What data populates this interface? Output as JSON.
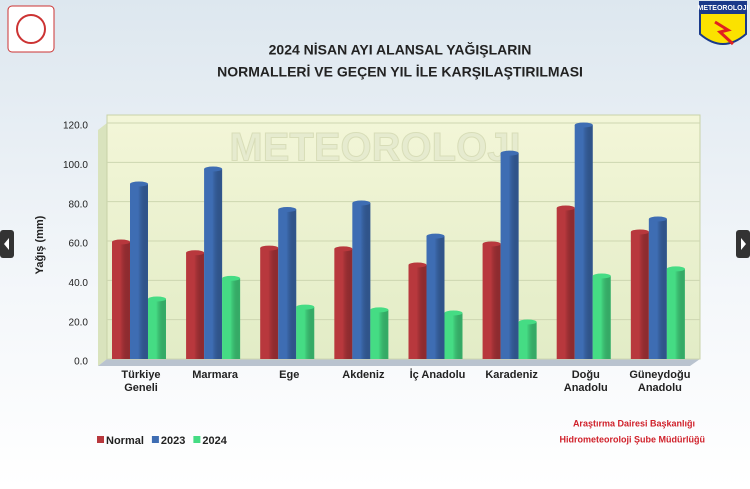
{
  "chart_data": {
    "type": "bar",
    "title": [
      "2024 NİSAN AYI ALANSAL YAĞIŞLARIN",
      "NORMALLERİ VE GEÇEN YIL İLE KARŞILAŞTIRILMASI"
    ],
    "y_label": "Yağış (mm)",
    "logo_text": "METEOROLOJI",
    "footer": [
      "Araştırma Dairesi Başkanlığı",
      "Hidrometeoroloji Şube Müdürlüğü"
    ],
    "categories": [
      "Türkiye\nGeneli",
      "Marmara",
      "Ege",
      "Akdeniz",
      "İç Anadolu",
      "Karadeniz",
      "Doğu\nAnadolu",
      "Güneydoğu\nAnadolu"
    ],
    "series": [
      {
        "name": "Normal",
        "color": "#b8383d",
        "values": [
          59.5,
          54,
          56.4,
          56,
          47.8,
          58.5,
          76.8,
          64.6
        ]
      },
      {
        "name": "2023",
        "color": "#3e6db3",
        "values": [
          89,
          96.6,
          76,
          79.3,
          62.5,
          104.7,
          119,
          71.2
        ]
      },
      {
        "name": "2024",
        "color": "#45dc84",
        "values": [
          30.5,
          41,
          26.4,
          25,
          23.4,
          18.8,
          42.2,
          45.8
        ]
      }
    ],
    "ylim": [
      0,
      120
    ],
    "yticks": [
      {
        "value": 0,
        "label": "0.0"
      },
      {
        "value": 20,
        "label": "20.0"
      },
      {
        "value": 40,
        "label": "40.0"
      },
      {
        "value": 60,
        "label": "60.0"
      },
      {
        "value": 80,
        "label": "80.0"
      },
      {
        "value": 100,
        "label": "100.0"
      },
      {
        "value": 120,
        "label": "120.0"
      }
    ],
    "grid": true,
    "legend": "bottom-left"
  }
}
